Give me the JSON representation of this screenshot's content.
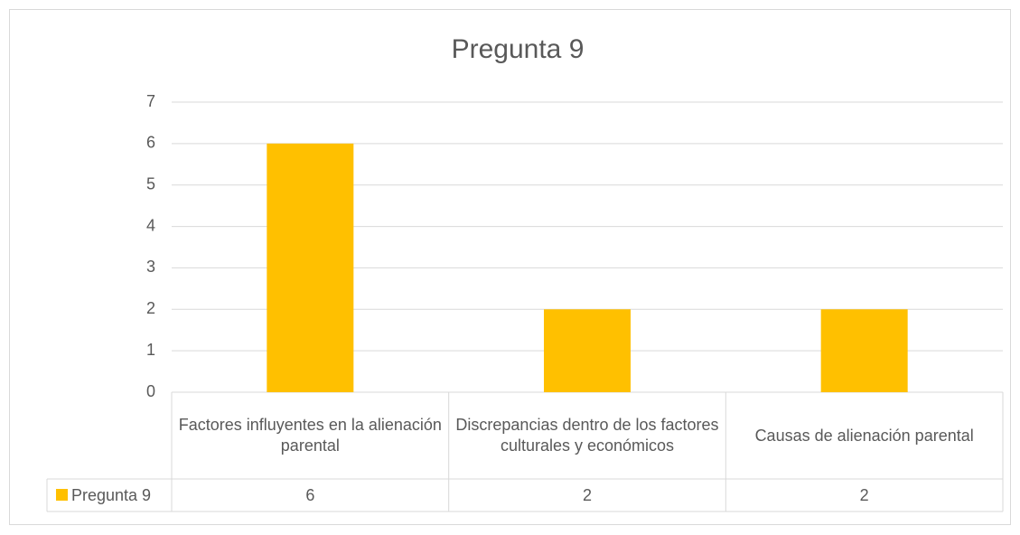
{
  "chart_data": {
    "type": "bar",
    "title": "Pregunta 9",
    "categories": [
      "Factores influyentes en la alienación parental",
      "Discrepancias dentro de los factores culturales y económicos",
      "Causas de alienación parental"
    ],
    "series": [
      {
        "name": "Pregunta 9",
        "color": "#ffc000",
        "values": [
          6,
          2,
          2
        ]
      }
    ],
    "ylim": [
      0,
      7
    ],
    "yticks": [
      0,
      1,
      2,
      3,
      4,
      5,
      6,
      7
    ],
    "grid": true
  }
}
